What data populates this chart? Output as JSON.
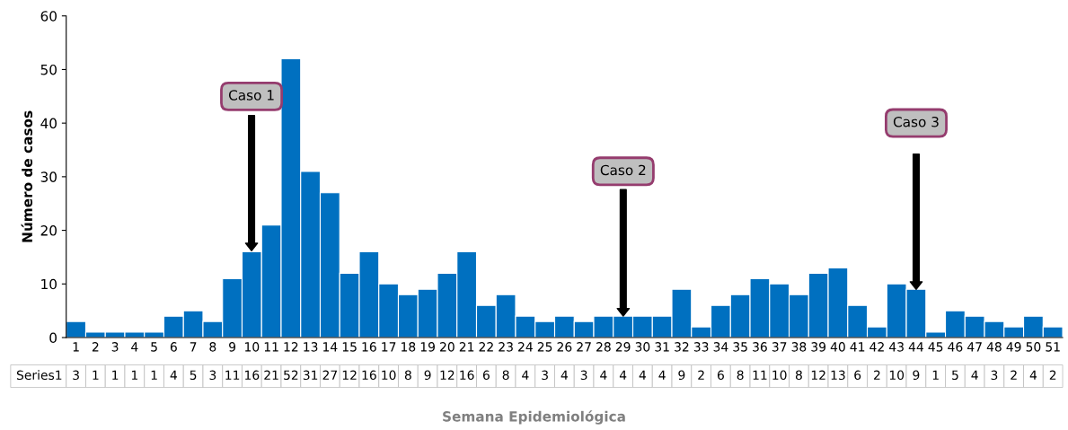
{
  "chart_data": {
    "type": "bar",
    "xlabel": "Semana Epidemiológica",
    "ylabel": "Número de casos",
    "categories": [
      "1",
      "2",
      "3",
      "4",
      "5",
      "6",
      "7",
      "8",
      "9",
      "10",
      "11",
      "12",
      "13",
      "14",
      "15",
      "16",
      "17",
      "18",
      "19",
      "20",
      "21",
      "22",
      "23",
      "24",
      "25",
      "26",
      "27",
      "28",
      "29",
      "30",
      "31",
      "32",
      "33",
      "34",
      "35",
      "36",
      "37",
      "38",
      "39",
      "40",
      "41",
      "42",
      "43",
      "44",
      "45",
      "46",
      "47",
      "48",
      "49",
      "50",
      "51"
    ],
    "series": [
      {
        "name": "Series1",
        "color": "#0070c0",
        "values": [
          3,
          1,
          1,
          1,
          1,
          4,
          5,
          3,
          11,
          16,
          21,
          52,
          31,
          27,
          12,
          16,
          10,
          8,
          9,
          12,
          16,
          6,
          8,
          4,
          3,
          4,
          3,
          4,
          4,
          4,
          4,
          9,
          2,
          6,
          8,
          11,
          10,
          8,
          12,
          13,
          6,
          2,
          10,
          9,
          1,
          5,
          4,
          3,
          2,
          4,
          2
        ]
      }
    ],
    "ylim": [
      0,
      60
    ],
    "yticks": [
      0,
      10,
      20,
      30,
      40,
      50,
      60
    ],
    "grid": false,
    "legend": false,
    "data_labels": true,
    "annotations": [
      "Caso 1",
      "Caso 2",
      "Caso 3"
    ]
  }
}
